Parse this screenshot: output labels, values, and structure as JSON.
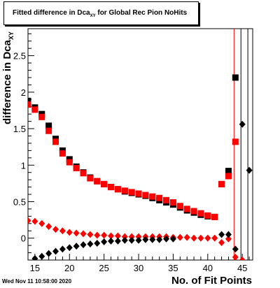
{
  "chart_data": {
    "type": "scatter",
    "title_main": "Fitted difference in Dca",
    "title_sub": "XY",
    "title_tail": " for Global Rec Pion NoHits",
    "ylabel_main": "difference in Dca",
    "ylabel_sub": "XY",
    "xlabel": "No. of Fit Points",
    "xlim": [
      14,
      46.5
    ],
    "ylim": [
      -0.3,
      2.87
    ],
    "xticks": [
      15,
      20,
      25,
      30,
      35,
      40,
      45
    ],
    "yticks": [
      0,
      0.5,
      1,
      1.5,
      2,
      2.5
    ],
    "ytick_labels": [
      "0",
      "0.5",
      "1",
      "1.5",
      "2",
      "2.5"
    ],
    "grid": false,
    "vertical_lines": [
      {
        "x": 43.8,
        "color": "#ff0000"
      },
      {
        "x": 44.8,
        "color": "#000000"
      },
      {
        "x": 45.8,
        "color": "#000000"
      }
    ],
    "series": [
      {
        "marker": "square",
        "color": "#000000",
        "x": [
          14,
          15,
          16,
          17,
          18,
          19,
          20,
          21,
          22,
          23,
          24,
          25,
          26,
          27,
          28,
          29,
          30,
          31,
          32,
          33,
          34,
          35,
          36,
          37,
          38,
          39,
          40,
          41,
          42,
          43,
          44
        ],
        "y": [
          1.88,
          1.79,
          1.7,
          1.54,
          1.36,
          1.2,
          1.08,
          0.98,
          0.9,
          0.83,
          0.78,
          0.74,
          0.7,
          0.67,
          0.64,
          0.62,
          0.6,
          0.58,
          0.55,
          0.52,
          0.49,
          0.46,
          0.42,
          0.38,
          0.35,
          0.32,
          0.3,
          0.29,
          0.74,
          0.92,
          2.2
        ]
      },
      {
        "marker": "square",
        "color": "#ff0000",
        "x": [
          14,
          15,
          16,
          17,
          18,
          19,
          20,
          21,
          22,
          23,
          24,
          25,
          26,
          27,
          28,
          29,
          30,
          31,
          32,
          33,
          34,
          35,
          36,
          37,
          38,
          39,
          40,
          41,
          42,
          43,
          44
        ],
        "y": [
          1.83,
          1.76,
          1.66,
          1.47,
          1.32,
          1.16,
          1.04,
          0.96,
          0.89,
          0.82,
          0.78,
          0.74,
          0.7,
          0.67,
          0.65,
          0.63,
          0.61,
          0.59,
          0.57,
          0.55,
          0.52,
          0.49,
          0.44,
          0.4,
          0.37,
          0.34,
          0.31,
          0.29,
          0.74,
          0.85,
          1.32
        ]
      },
      {
        "marker": "diamond",
        "color": "#ff0000",
        "x": [
          14,
          15,
          16,
          17,
          18,
          19,
          20,
          21,
          22,
          23,
          24,
          25,
          26,
          27,
          28,
          29,
          30,
          31,
          32,
          33,
          34,
          35,
          36,
          37,
          38,
          39,
          40,
          41,
          42,
          43,
          44,
          45
        ],
        "y": [
          0.24,
          0.23,
          0.2,
          0.16,
          0.12,
          0.1,
          0.08,
          0.07,
          0.06,
          0.05,
          0.04,
          0.04,
          0.03,
          0.03,
          0.02,
          0.02,
          0.02,
          0.02,
          0.02,
          0.02,
          0.02,
          0.01,
          0.01,
          0.01,
          0.0,
          0.0,
          0.0,
          0.0,
          -0.06,
          -0.01,
          -0.26,
          -0.3
        ]
      },
      {
        "marker": "diamond",
        "color": "#000000",
        "x": [
          15,
          16,
          17,
          18,
          19,
          20,
          21,
          22,
          23,
          24,
          25,
          26,
          27,
          28,
          29,
          30,
          31,
          32,
          33,
          34,
          35,
          42,
          43,
          44,
          45,
          46
        ],
        "y": [
          -0.28,
          -0.25,
          -0.21,
          -0.18,
          -0.15,
          -0.13,
          -0.11,
          -0.09,
          -0.08,
          -0.07,
          -0.05,
          -0.04,
          -0.04,
          -0.03,
          -0.03,
          -0.03,
          -0.02,
          -0.02,
          -0.02,
          -0.01,
          -0.01,
          0.05,
          0.05,
          -0.15,
          1.56,
          0.93
        ]
      }
    ]
  },
  "footer": {
    "datestamp": "Wed Nov 11 10:58:00 2020"
  }
}
